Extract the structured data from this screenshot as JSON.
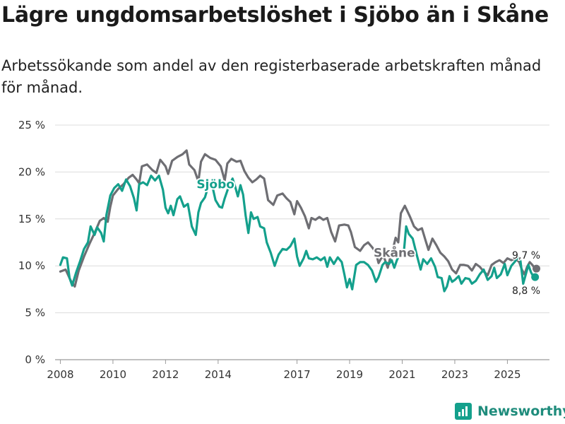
{
  "title": "Lägre ungdomsarbetslöshet i Sjöbo än i Skåne",
  "subtitle": "Arbetssökande som andel av den registerbaserade arbetskraften månad för månad.",
  "brand": {
    "name": "Newsworthy",
    "color": "#14a08c"
  },
  "chart_data": {
    "type": "line",
    "title": "Lägre ungdomsarbetslöshet i Sjöbo än i Skåne",
    "xlabel": "",
    "ylabel": "",
    "ylim": [
      0,
      25
    ],
    "xlim": [
      2007.8,
      2026.6
    ],
    "y_ticks": [
      {
        "value": 0,
        "label": "0 %"
      },
      {
        "value": 5,
        "label": "5 %"
      },
      {
        "value": 10,
        "label": "10 %"
      },
      {
        "value": 15,
        "label": "15 %"
      },
      {
        "value": 20,
        "label": "20 %"
      },
      {
        "value": 25,
        "label": "25 %"
      }
    ],
    "x_ticks": [
      {
        "value": 2008,
        "label": "2008"
      },
      {
        "value": 2010,
        "label": "2010"
      },
      {
        "value": 2012,
        "label": "2012"
      },
      {
        "value": 2014,
        "label": "2014"
      },
      {
        "value": 2017,
        "label": "2017"
      },
      {
        "value": 2019,
        "label": "2019"
      },
      {
        "value": 2021,
        "label": "2021"
      },
      {
        "value": 2023,
        "label": "2023"
      },
      {
        "value": 2025,
        "label": "2025"
      }
    ],
    "grid": true,
    "series": [
      {
        "name": "Skåne",
        "color": "#6e6e73",
        "label": "Skåne",
        "end_label": "9,7 %",
        "end_value": 9.7,
        "points": [
          [
            2008.0,
            9.4
          ],
          [
            2008.2,
            9.6
          ],
          [
            2008.4,
            8.4
          ],
          [
            2008.55,
            7.8
          ],
          [
            2008.7,
            9.5
          ],
          [
            2008.9,
            11
          ],
          [
            2009.1,
            12.3
          ],
          [
            2009.3,
            13.5
          ],
          [
            2009.5,
            14.8
          ],
          [
            2009.65,
            15.1
          ],
          [
            2009.8,
            14.7
          ],
          [
            2009.9,
            16.3
          ],
          [
            2010.0,
            17.5
          ],
          [
            2010.2,
            18.2
          ],
          [
            2010.4,
            18.7
          ],
          [
            2010.6,
            19.4
          ],
          [
            2010.75,
            19.7
          ],
          [
            2010.9,
            19.2
          ],
          [
            2011.0,
            18.8
          ],
          [
            2011.1,
            20.6
          ],
          [
            2011.3,
            20.8
          ],
          [
            2011.5,
            20.2
          ],
          [
            2011.65,
            19.9
          ],
          [
            2011.8,
            21.3
          ],
          [
            2012.0,
            20.6
          ],
          [
            2012.1,
            19.8
          ],
          [
            2012.25,
            21.2
          ],
          [
            2012.45,
            21.6
          ],
          [
            2012.65,
            21.9
          ],
          [
            2012.8,
            22.3
          ],
          [
            2012.9,
            20.8
          ],
          [
            2013.1,
            20.2
          ],
          [
            2013.25,
            19.0
          ],
          [
            2013.35,
            21.1
          ],
          [
            2013.5,
            21.9
          ],
          [
            2013.7,
            21.5
          ],
          [
            2013.9,
            21.3
          ],
          [
            2014.1,
            20.6
          ],
          [
            2014.25,
            19.1
          ],
          [
            2014.35,
            20.9
          ],
          [
            2014.5,
            21.4
          ],
          [
            2014.7,
            21.1
          ],
          [
            2014.85,
            21.2
          ],
          [
            2015.0,
            20.1
          ],
          [
            2015.15,
            19.4
          ],
          [
            2015.3,
            18.9
          ],
          [
            2015.45,
            19.2
          ],
          [
            2015.6,
            19.6
          ],
          [
            2015.75,
            19.3
          ],
          [
            2015.9,
            17.0
          ],
          [
            2016.1,
            16.5
          ],
          [
            2016.25,
            17.5
          ],
          [
            2016.45,
            17.7
          ],
          [
            2016.6,
            17.2
          ],
          [
            2016.75,
            16.8
          ],
          [
            2016.9,
            15.5
          ],
          [
            2017.0,
            16.9
          ],
          [
            2017.15,
            16.2
          ],
          [
            2017.3,
            15.3
          ],
          [
            2017.45,
            14.0
          ],
          [
            2017.55,
            15.1
          ],
          [
            2017.7,
            14.9
          ],
          [
            2017.85,
            15.2
          ],
          [
            2018.0,
            14.9
          ],
          [
            2018.15,
            15.1
          ],
          [
            2018.3,
            13.6
          ],
          [
            2018.45,
            12.6
          ],
          [
            2018.6,
            14.3
          ],
          [
            2018.8,
            14.4
          ],
          [
            2018.95,
            14.3
          ],
          [
            2019.05,
            13.6
          ],
          [
            2019.2,
            12.0
          ],
          [
            2019.4,
            11.6
          ],
          [
            2019.55,
            12.2
          ],
          [
            2019.7,
            12.5
          ],
          [
            2019.85,
            12.0
          ],
          [
            2020.0,
            11.4
          ],
          [
            2020.1,
            10.3
          ],
          [
            2020.2,
            10.8
          ],
          [
            2020.3,
            11.0
          ],
          [
            2020.45,
            9.8
          ],
          [
            2020.55,
            10.9
          ],
          [
            2020.65,
            11.8
          ],
          [
            2020.75,
            13.0
          ],
          [
            2020.85,
            12.5
          ],
          [
            2020.95,
            15.6
          ],
          [
            2021.1,
            16.4
          ],
          [
            2021.3,
            15.2
          ],
          [
            2021.45,
            14.2
          ],
          [
            2021.6,
            13.8
          ],
          [
            2021.75,
            14.0
          ],
          [
            2021.9,
            12.6
          ],
          [
            2022.0,
            11.7
          ],
          [
            2022.15,
            12.9
          ],
          [
            2022.3,
            12.2
          ],
          [
            2022.45,
            11.4
          ],
          [
            2022.6,
            11.0
          ],
          [
            2022.75,
            10.5
          ],
          [
            2022.9,
            9.6
          ],
          [
            2023.05,
            9.2
          ],
          [
            2023.2,
            10.1
          ],
          [
            2023.35,
            10.1
          ],
          [
            2023.5,
            10.0
          ],
          [
            2023.65,
            9.5
          ],
          [
            2023.8,
            10.2
          ],
          [
            2023.95,
            9.9
          ],
          [
            2024.1,
            9.4
          ],
          [
            2024.25,
            9.0
          ],
          [
            2024.4,
            10.1
          ],
          [
            2024.55,
            10.4
          ],
          [
            2024.7,
            10.6
          ],
          [
            2024.85,
            10.3
          ],
          [
            2025.0,
            10.8
          ],
          [
            2025.15,
            10.6
          ],
          [
            2025.3,
            10.8
          ],
          [
            2025.45,
            10.4
          ],
          [
            2025.55,
            9.6
          ],
          [
            2025.65,
            9.1
          ],
          [
            2025.75,
            9.9
          ],
          [
            2025.85,
            10.4
          ],
          [
            2025.95,
            10.1
          ],
          [
            2026.05,
            9.7
          ]
        ]
      },
      {
        "name": "Sjöbo",
        "color": "#14a08c",
        "label": "Sjöbo",
        "end_label": "8,8 %",
        "end_value": 8.8,
        "points": [
          [
            2008.0,
            10.1
          ],
          [
            2008.1,
            10.9
          ],
          [
            2008.25,
            10.8
          ],
          [
            2008.35,
            8.7
          ],
          [
            2008.45,
            7.9
          ],
          [
            2008.6,
            9.3
          ],
          [
            2008.75,
            10.5
          ],
          [
            2008.9,
            11.8
          ],
          [
            2009.05,
            12.5
          ],
          [
            2009.15,
            14.2
          ],
          [
            2009.3,
            13.3
          ],
          [
            2009.4,
            14.1
          ],
          [
            2009.55,
            13.5
          ],
          [
            2009.65,
            12.6
          ],
          [
            2009.75,
            15.4
          ],
          [
            2009.9,
            17.5
          ],
          [
            2010.05,
            18.3
          ],
          [
            2010.2,
            18.7
          ],
          [
            2010.35,
            18.0
          ],
          [
            2010.5,
            19.2
          ],
          [
            2010.65,
            18.5
          ],
          [
            2010.8,
            17.2
          ],
          [
            2010.9,
            15.9
          ],
          [
            2011.0,
            18.7
          ],
          [
            2011.15,
            18.9
          ],
          [
            2011.3,
            18.6
          ],
          [
            2011.45,
            19.6
          ],
          [
            2011.6,
            19.1
          ],
          [
            2011.75,
            19.6
          ],
          [
            2011.9,
            18.1
          ],
          [
            2012.0,
            16.2
          ],
          [
            2012.1,
            15.6
          ],
          [
            2012.2,
            16.4
          ],
          [
            2012.3,
            15.4
          ],
          [
            2012.45,
            17.1
          ],
          [
            2012.55,
            17.4
          ],
          [
            2012.7,
            16.3
          ],
          [
            2012.85,
            16.6
          ],
          [
            2013.0,
            14.2
          ],
          [
            2013.15,
            13.3
          ],
          [
            2013.25,
            15.7
          ],
          [
            2013.35,
            16.7
          ],
          [
            2013.5,
            17.3
          ],
          [
            2013.65,
            18.7
          ],
          [
            2013.75,
            18.9
          ],
          [
            2013.9,
            17.0
          ],
          [
            2014.05,
            16.3
          ],
          [
            2014.15,
            16.2
          ],
          [
            2014.25,
            17.2
          ],
          [
            2014.4,
            18.4
          ],
          [
            2014.55,
            19.3
          ],
          [
            2014.65,
            18.4
          ],
          [
            2014.75,
            17.4
          ],
          [
            2014.85,
            18.6
          ],
          [
            2014.95,
            17.6
          ],
          [
            2015.05,
            15.3
          ],
          [
            2015.15,
            13.5
          ],
          [
            2015.25,
            15.7
          ],
          [
            2015.35,
            15.0
          ],
          [
            2015.5,
            15.2
          ],
          [
            2015.6,
            14.2
          ],
          [
            2015.75,
            14.0
          ],
          [
            2015.85,
            12.5
          ],
          [
            2016.0,
            11.4
          ],
          [
            2016.15,
            10.0
          ],
          [
            2016.3,
            11.2
          ],
          [
            2016.45,
            11.8
          ],
          [
            2016.6,
            11.7
          ],
          [
            2016.75,
            12.1
          ],
          [
            2016.9,
            12.9
          ],
          [
            2017.0,
            11.0
          ],
          [
            2017.1,
            10.0
          ],
          [
            2017.25,
            10.8
          ],
          [
            2017.35,
            11.6
          ],
          [
            2017.45,
            10.8
          ],
          [
            2017.6,
            10.7
          ],
          [
            2017.75,
            10.9
          ],
          [
            2017.9,
            10.6
          ],
          [
            2018.05,
            10.9
          ],
          [
            2018.15,
            9.9
          ],
          [
            2018.25,
            10.9
          ],
          [
            2018.4,
            10.2
          ],
          [
            2018.55,
            10.9
          ],
          [
            2018.7,
            10.4
          ],
          [
            2018.8,
            9.1
          ],
          [
            2018.9,
            7.7
          ],
          [
            2019.0,
            8.6
          ],
          [
            2019.1,
            7.5
          ],
          [
            2019.25,
            10.1
          ],
          [
            2019.4,
            10.4
          ],
          [
            2019.55,
            10.4
          ],
          [
            2019.7,
            10.1
          ],
          [
            2019.85,
            9.5
          ],
          [
            2020.0,
            8.3
          ],
          [
            2020.1,
            8.8
          ],
          [
            2020.25,
            10.1
          ],
          [
            2020.35,
            10.4
          ],
          [
            2020.5,
            10.2
          ],
          [
            2020.6,
            10.6
          ],
          [
            2020.7,
            9.8
          ],
          [
            2020.8,
            10.6
          ],
          [
            2020.9,
            11.2
          ],
          [
            2020.95,
            null
          ],
          [
            2021.05,
            11.1
          ],
          [
            2021.15,
            14.2
          ],
          [
            2021.25,
            13.4
          ],
          [
            2021.4,
            12.9
          ],
          [
            2021.55,
            11.2
          ],
          [
            2021.7,
            9.6
          ],
          [
            2021.8,
            10.7
          ],
          [
            2021.95,
            10.2
          ],
          [
            2022.1,
            10.8
          ],
          [
            2022.25,
            9.9
          ],
          [
            2022.35,
            8.8
          ],
          [
            2022.5,
            8.7
          ],
          [
            2022.6,
            7.3
          ],
          [
            2022.7,
            7.8
          ],
          [
            2022.8,
            8.9
          ],
          [
            2022.9,
            8.3
          ],
          [
            2023.0,
            8.5
          ],
          [
            2023.15,
            8.9
          ],
          [
            2023.25,
            8.1
          ],
          [
            2023.4,
            8.7
          ],
          [
            2023.55,
            8.6
          ],
          [
            2023.65,
            8.1
          ],
          [
            2023.8,
            8.4
          ],
          [
            2023.95,
            9.1
          ],
          [
            2024.1,
            9.6
          ],
          [
            2024.25,
            8.5
          ],
          [
            2024.4,
            8.9
          ],
          [
            2024.5,
            9.8
          ],
          [
            2024.6,
            8.7
          ],
          [
            2024.75,
            9.1
          ],
          [
            2024.9,
            10.2
          ],
          [
            2025.0,
            9.0
          ],
          [
            2025.15,
            10.0
          ],
          [
            2025.3,
            10.5
          ],
          [
            2025.4,
            11.0
          ],
          [
            2025.5,
            10.5
          ],
          [
            2025.6,
            8.1
          ],
          [
            2025.7,
            9.1
          ],
          [
            2025.8,
            10.1
          ],
          [
            2025.9,
            9.3
          ],
          [
            2026.0,
            8.8
          ]
        ]
      }
    ]
  }
}
